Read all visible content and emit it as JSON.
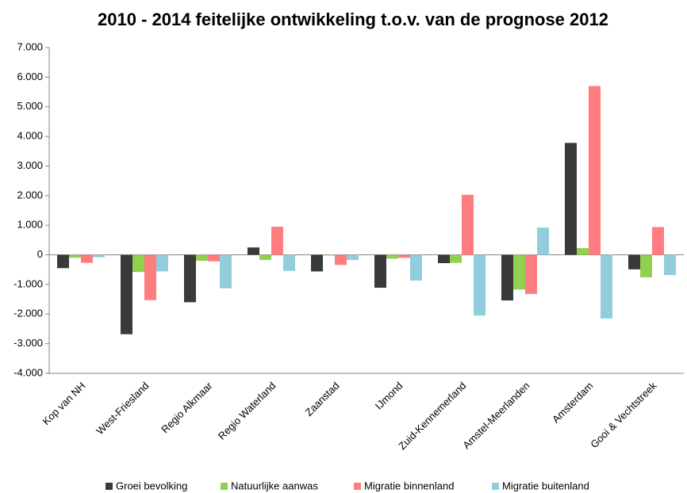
{
  "chart_data": {
    "type": "bar",
    "title": "2010 - 2014 feitelijke ontwikkeling t.o.v. van de prognose 2012",
    "categories": [
      "Kop van NH",
      "West-Friesland",
      "Regio Alkmaar",
      "Regio Waterland",
      "Zaanstad",
      "IJmond",
      "Zuid-Kennemerland",
      "Amstel-Meerlanden",
      "Amsterdam",
      "Gooi & Vechtstreek"
    ],
    "series": [
      {
        "name": "Groei bevolking",
        "color": "#3a3a3a",
        "values": [
          -450,
          -2680,
          -1600,
          250,
          -560,
          -1110,
          -280,
          -1540,
          3780,
          -490
        ]
      },
      {
        "name": "Natuurlijke aanwas",
        "color": "#92d050",
        "values": [
          -100,
          -580,
          -200,
          -170,
          -20,
          -130,
          -270,
          -1170,
          230,
          -760
        ]
      },
      {
        "name": "Migratie binnenland",
        "color": "#ff7c80",
        "values": [
          -270,
          -1530,
          -220,
          950,
          -340,
          -100,
          2030,
          -1320,
          5700,
          940
        ]
      },
      {
        "name": "Migratie buitenland",
        "color": "#92cddc",
        "values": [
          -80,
          -560,
          -1130,
          -540,
          -170,
          -870,
          -2050,
          920,
          -2150,
          -680
        ]
      }
    ],
    "ylim": [
      -4000,
      7000
    ],
    "yticks": [
      {
        "value": -4000,
        "label": "-4.000"
      },
      {
        "value": -3000,
        "label": "-3.000"
      },
      {
        "value": -2000,
        "label": "-2.000"
      },
      {
        "value": -1000,
        "label": "-1.000"
      },
      0,
      {
        "value": 1000,
        "label": "1.000"
      },
      {
        "value": 2000,
        "label": "2.000"
      },
      {
        "value": 3000,
        "label": "3.000"
      },
      {
        "value": 4000,
        "label": "4.000"
      },
      {
        "value": 5000,
        "label": "5.000"
      },
      {
        "value": 6000,
        "label": "6.000"
      },
      {
        "value": 7000,
        "label": "7.000"
      }
    ],
    "legend": "bottom"
  }
}
